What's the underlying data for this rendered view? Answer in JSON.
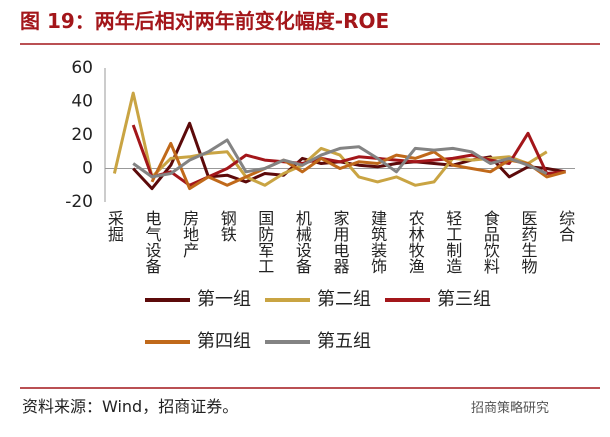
{
  "chart_data": {
    "type": "line",
    "title": "图 19：两年后相对两年前变化幅度-ROE",
    "source": "资料来源：Wind，招商证券。",
    "watermark": "招商策略研究",
    "categories": [
      "采掘",
      null,
      "电气设备",
      null,
      "房地产",
      null,
      "钢铁",
      null,
      "国防军工",
      null,
      "机械设备",
      null,
      "家用电器",
      null,
      "建筑装饰",
      null,
      "农林牧渔",
      null,
      "轻工制造",
      null,
      "食品饮料",
      null,
      "医药生物",
      null,
      "综合"
    ],
    "ylim": [
      -20,
      60
    ],
    "yticks": [
      -20,
      0,
      20,
      40,
      60
    ],
    "legend": "bottom",
    "series": [
      {
        "name": "第一组",
        "color": "#5c0a0a",
        "values": [
          null,
          0,
          -12,
          2,
          27,
          -5,
          -4,
          -8,
          -3,
          -4,
          6,
          3,
          4,
          2,
          1,
          3,
          4,
          3,
          2,
          5,
          7,
          -5,
          1,
          0,
          -2
        ]
      },
      {
        "name": "第二组",
        "color": "#c9a443",
        "values": [
          -3,
          45,
          -5,
          6,
          7,
          9,
          10,
          -5,
          -10,
          -3,
          2,
          12,
          8,
          -5,
          -8,
          -5,
          -10,
          -8,
          6,
          5,
          6,
          7,
          3,
          10,
          null
        ]
      },
      {
        "name": "第三组",
        "color": "#a3161a",
        "values": [
          null,
          26,
          -5,
          -2,
          -10,
          -5,
          0,
          8,
          5,
          4,
          3,
          6,
          4,
          7,
          6,
          5,
          4,
          5,
          6,
          8,
          5,
          3,
          21,
          -3,
          -2
        ]
      },
      {
        "name": "第四组",
        "color": "#c0691a",
        "values": [
          null,
          null,
          -8,
          15,
          -12,
          -5,
          -10,
          -5,
          0,
          5,
          -2,
          6,
          0,
          4,
          3,
          8,
          6,
          10,
          2,
          0,
          -2,
          5,
          3,
          -5,
          -2
        ]
      },
      {
        "name": "第五组",
        "color": "#838383",
        "values": [
          null,
          3,
          -5,
          -3,
          5,
          10,
          17,
          -2,
          0,
          5,
          2,
          8,
          12,
          13,
          6,
          -2,
          12,
          11,
          12,
          10,
          3,
          6,
          2,
          -3,
          null
        ]
      }
    ]
  }
}
